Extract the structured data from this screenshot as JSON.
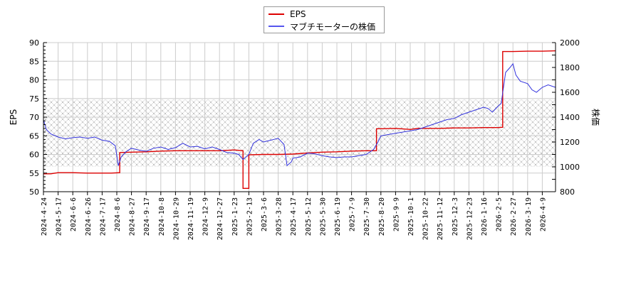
{
  "legend": {
    "items": [
      {
        "label": "EPS",
        "color": "#dd0000"
      },
      {
        "label": "マブチモーターの株価",
        "color": "#3333dd"
      }
    ]
  },
  "chart_data": {
    "type": "line",
    "title": "",
    "xlabel": "",
    "ylabel": "EPS",
    "y2label": "株価",
    "ylim": [
      50,
      90
    ],
    "y2lim": [
      800,
      2000
    ],
    "yticks": [
      50,
      55,
      60,
      65,
      70,
      75,
      80,
      85,
      90
    ],
    "y2ticks": [
      800,
      1000,
      1200,
      1400,
      1600,
      1800,
      2000
    ],
    "grid": true,
    "legend_position": "top-center",
    "hatched_band_price_range": [
      1000,
      1540
    ],
    "x_tick_labels": [
      "2024-4-24",
      "2024-5-17",
      "2024-6-6",
      "2024-6-26",
      "2024-7-17",
      "2024-8-6",
      "2024-8-27",
      "2024-9-17",
      "2024-10-8",
      "2024-10-29",
      "2024-11-19",
      "2024-12-9",
      "2024-12-27",
      "2025-1-23",
      "2025-2-13",
      "2025-3-6",
      "2025-3-28",
      "2025-4-17",
      "2025-5-12",
      "2025-5-30",
      "2025-6-19",
      "2025-7-9",
      "2025-7-30",
      "2025-8-20",
      "2025-9-9",
      "2025-10-1",
      "2025-10-22",
      "2025-11-12",
      "2025-12-3",
      "2025-12-23",
      "2026-1-16",
      "2026-2-5",
      "2026-2-27",
      "2026-3-19",
      "2026-4-9"
    ],
    "series": [
      {
        "name": "EPS",
        "axis": "left",
        "color": "#dd0000",
        "points": [
          [
            0,
            54.8
          ],
          [
            0.5,
            54.8
          ],
          [
            1,
            55.1
          ],
          [
            2,
            55.1
          ],
          [
            3,
            55.0
          ],
          [
            4,
            55.0
          ],
          [
            4.6,
            55.0
          ],
          [
            5.2,
            55.1
          ],
          [
            5.2,
            60.5
          ],
          [
            6,
            60.6
          ],
          [
            7,
            60.7
          ],
          [
            8,
            60.9
          ],
          [
            9,
            61.0
          ],
          [
            10,
            61.0
          ],
          [
            11,
            61.0
          ],
          [
            12,
            61.0
          ],
          [
            13,
            61.2
          ],
          [
            13.6,
            61.0
          ],
          [
            13.6,
            50.9
          ],
          [
            14.0,
            50.9
          ],
          [
            14.0,
            59.9
          ],
          [
            15,
            60.0
          ],
          [
            16,
            60.0
          ],
          [
            17,
            60.1
          ],
          [
            18,
            60.4
          ],
          [
            19,
            60.6
          ],
          [
            20,
            60.7
          ],
          [
            21,
            60.9
          ],
          [
            22,
            61.0
          ],
          [
            22.7,
            61.0
          ],
          [
            22.7,
            66.9
          ],
          [
            23,
            66.9
          ],
          [
            24,
            67.0
          ],
          [
            25,
            66.7
          ],
          [
            25.5,
            67.0
          ],
          [
            26,
            67.0
          ],
          [
            27,
            67.0
          ],
          [
            28,
            67.1
          ],
          [
            29,
            67.1
          ],
          [
            30,
            67.2
          ],
          [
            31,
            67.2
          ],
          [
            31.3,
            67.3
          ],
          [
            31.3,
            87.6
          ],
          [
            32,
            87.6
          ],
          [
            33,
            87.7
          ],
          [
            34,
            87.7
          ],
          [
            34.9,
            87.8
          ]
        ]
      },
      {
        "name": "マブチモーターの株価",
        "axis": "right",
        "color": "#3333dd",
        "points": [
          [
            0,
            1380
          ],
          [
            0.2,
            1300
          ],
          [
            0.5,
            1265
          ],
          [
            1,
            1240
          ],
          [
            1.5,
            1225
          ],
          [
            2,
            1235
          ],
          [
            2.5,
            1240
          ],
          [
            3,
            1230
          ],
          [
            3.5,
            1240
          ],
          [
            4,
            1215
          ],
          [
            4.5,
            1205
          ],
          [
            4.9,
            1170
          ],
          [
            5.1,
            1010
          ],
          [
            5.3,
            1080
          ],
          [
            5.6,
            1120
          ],
          [
            6,
            1150
          ],
          [
            6.5,
            1135
          ],
          [
            7,
            1125
          ],
          [
            7.5,
            1150
          ],
          [
            8,
            1160
          ],
          [
            8.5,
            1140
          ],
          [
            9,
            1155
          ],
          [
            9.5,
            1190
          ],
          [
            10,
            1160
          ],
          [
            10.5,
            1165
          ],
          [
            11,
            1145
          ],
          [
            11.5,
            1160
          ],
          [
            12,
            1140
          ],
          [
            12.5,
            1115
          ],
          [
            13,
            1110
          ],
          [
            13.3,
            1100
          ],
          [
            13.6,
            1060
          ],
          [
            14,
            1100
          ],
          [
            14.3,
            1190
          ],
          [
            14.7,
            1220
          ],
          [
            15,
            1200
          ],
          [
            15.5,
            1215
          ],
          [
            16,
            1230
          ],
          [
            16.4,
            1180
          ],
          [
            16.6,
            1010
          ],
          [
            16.9,
            1040
          ],
          [
            17,
            1070
          ],
          [
            17.5,
            1080
          ],
          [
            18,
            1110
          ],
          [
            18.5,
            1105
          ],
          [
            19,
            1090
          ],
          [
            19.5,
            1080
          ],
          [
            20,
            1075
          ],
          [
            20.5,
            1080
          ],
          [
            21,
            1080
          ],
          [
            21.5,
            1090
          ],
          [
            22,
            1100
          ],
          [
            22.5,
            1140
          ],
          [
            22.8,
            1200
          ],
          [
            23,
            1250
          ],
          [
            23.5,
            1260
          ],
          [
            24,
            1270
          ],
          [
            24.5,
            1280
          ],
          [
            25,
            1290
          ],
          [
            25.5,
            1300
          ],
          [
            26,
            1320
          ],
          [
            26.5,
            1340
          ],
          [
            27,
            1360
          ],
          [
            27.5,
            1380
          ],
          [
            28,
            1390
          ],
          [
            28.5,
            1420
          ],
          [
            29,
            1440
          ],
          [
            29.5,
            1460
          ],
          [
            30,
            1480
          ],
          [
            30.3,
            1470
          ],
          [
            30.6,
            1440
          ],
          [
            31,
            1490
          ],
          [
            31.2,
            1510
          ],
          [
            31.5,
            1760
          ],
          [
            31.8,
            1800
          ],
          [
            32,
            1830
          ],
          [
            32.2,
            1740
          ],
          [
            32.5,
            1690
          ],
          [
            33,
            1670
          ],
          [
            33.3,
            1620
          ],
          [
            33.6,
            1600
          ],
          [
            34,
            1640
          ],
          [
            34.4,
            1660
          ],
          [
            34.9,
            1640
          ]
        ]
      }
    ]
  }
}
